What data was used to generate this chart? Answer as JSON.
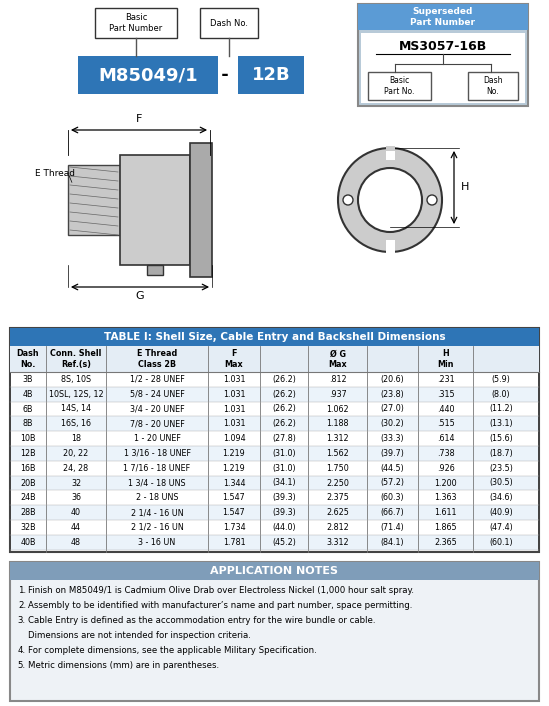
{
  "blue_color": "#2E75B6",
  "steel_blue": "#5B9BD5",
  "gray_header": "#7F9DB9",
  "light_gray": "#D9E1F2",
  "table_header_bg": "#2E75B6",
  "note_header_bg": "#7F9DB9",
  "part_number": "M85049/1",
  "dash_number": "12B",
  "superseded_pn": "MS3057-16B",
  "table_title": "TABLE I: Shell Size, Cable Entry and Backshell Dimensions",
  "table_data": [
    [
      "3B",
      "8S, 10S",
      "1/2 - 28 UNEF",
      "1.031",
      "(26.2)",
      ".812",
      "(20.6)",
      ".231",
      "(5.9)"
    ],
    [
      "4B",
      "10SL, 12S, 12",
      "5/8 - 24 UNEF",
      "1.031",
      "(26.2)",
      ".937",
      "(23.8)",
      ".315",
      "(8.0)"
    ],
    [
      "6B",
      "14S, 14",
      "3/4 - 20 UNEF",
      "1.031",
      "(26.2)",
      "1.062",
      "(27.0)",
      ".440",
      "(11.2)"
    ],
    [
      "8B",
      "16S, 16",
      "7/8 - 20 UNEF",
      "1.031",
      "(26.2)",
      "1.188",
      "(30.2)",
      ".515",
      "(13.1)"
    ],
    [
      "10B",
      "18",
      "1 - 20 UNEF",
      "1.094",
      "(27.8)",
      "1.312",
      "(33.3)",
      ".614",
      "(15.6)"
    ],
    [
      "12B",
      "20, 22",
      "1 3/16 - 18 UNEF",
      "1.219",
      "(31.0)",
      "1.562",
      "(39.7)",
      ".738",
      "(18.7)"
    ],
    [
      "16B",
      "24, 28",
      "1 7/16 - 18 UNEF",
      "1.219",
      "(31.0)",
      "1.750",
      "(44.5)",
      ".926",
      "(23.5)"
    ],
    [
      "20B",
      "32",
      "1 3/4 - 18 UNS",
      "1.344",
      "(34.1)",
      "2.250",
      "(57.2)",
      "1.200",
      "(30.5)"
    ],
    [
      "24B",
      "36",
      "2 - 18 UNS",
      "1.547",
      "(39.3)",
      "2.375",
      "(60.3)",
      "1.363",
      "(34.6)"
    ],
    [
      "28B",
      "40",
      "2 1/4 - 16 UN",
      "1.547",
      "(39.3)",
      "2.625",
      "(66.7)",
      "1.611",
      "(40.9)"
    ],
    [
      "32B",
      "44",
      "2 1/2 - 16 UN",
      "1.734",
      "(44.0)",
      "2.812",
      "(71.4)",
      "1.865",
      "(47.4)"
    ],
    [
      "40B",
      "48",
      "3 - 16 UN",
      "1.781",
      "(45.2)",
      "3.312",
      "(84.1)",
      "2.365",
      "(60.1)"
    ]
  ],
  "app_notes": [
    "Finish on M85049/1 is Cadmium Olive Drab over Electroless Nickel (1,000 hour salt spray.",
    "Assembly to be identified with manufacturer’s name and part number, space permitting.",
    "Cable Entry is defined as the accommodation entry for the wire bundle or cable.",
    "    Dimensions are not intended for inspection criteria.",
    "For complete dimensions, see the applicable Military Specification.",
    "Metric dimensions (mm) are in parentheses."
  ]
}
